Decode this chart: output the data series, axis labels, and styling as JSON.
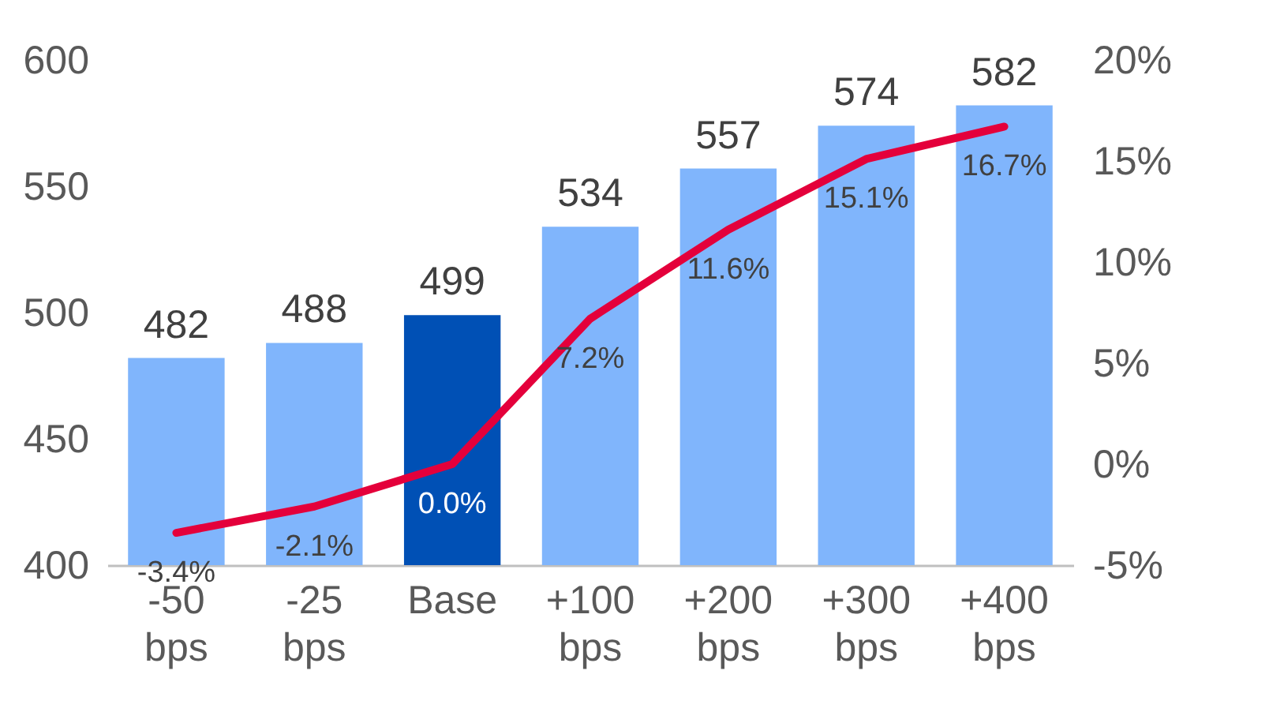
{
  "chart_data": {
    "type": "bar",
    "categories": [
      "-50 bps",
      "-25 bps",
      "Base",
      "+100 bps",
      "+200 bps",
      "+300 bps",
      "+400 bps"
    ],
    "series": [
      {
        "values": [
          482,
          488,
          499,
          534,
          557,
          574,
          582
        ],
        "colors": [
          "#80b5fc",
          "#80b5fc",
          "#0050b5",
          "#80b5fc",
          "#80b5fc",
          "#80b5fc",
          "#80b5fc"
        ]
      },
      {
        "type": "line",
        "axis": "y2",
        "color": "#e4003b",
        "values": [
          -3.4,
          -2.1,
          0.0,
          7.2,
          11.6,
          15.1,
          16.7
        ],
        "value_labels": [
          "-3.4%",
          "-2.1%",
          "0.0%",
          "7.2%",
          "11.6%",
          "15.1%",
          "16.7%"
        ]
      }
    ],
    "ylim": [
      400,
      600
    ],
    "yticks": [
      400,
      450,
      500,
      550,
      600
    ],
    "y2lim": [
      -5,
      20
    ],
    "y2ticks": [
      {
        "value": -5,
        "label": "-5%"
      },
      {
        "value": 0,
        "label": "0%"
      },
      {
        "value": 5,
        "label": "5%"
      },
      {
        "value": 10,
        "label": "10%"
      },
      {
        "value": 15,
        "label": "15%"
      },
      {
        "value": 20,
        "label": "20%"
      }
    ],
    "data_labels": true
  }
}
